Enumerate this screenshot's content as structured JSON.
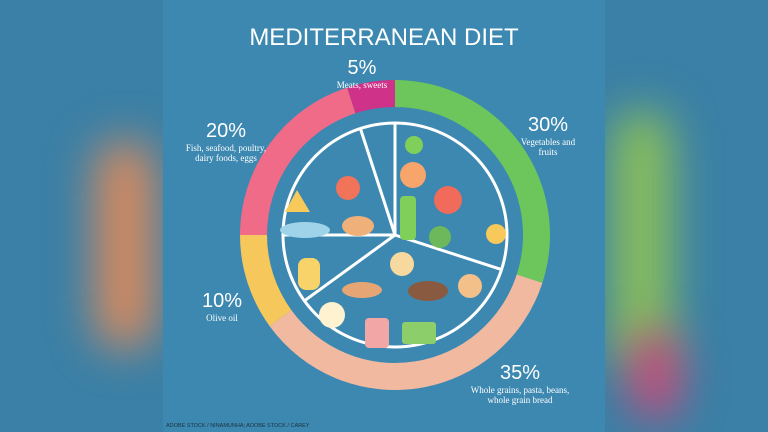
{
  "chart_data": {
    "type": "pie",
    "title": "MEDITERRANEAN DIET",
    "categories": [
      "Vegetables and fruits",
      "Whole grains, pasta, beans, whole grain bread",
      "Olive oil",
      "Fish, seafood, poultry, dairy foods, eggs",
      "Meats, sweets"
    ],
    "values": [
      30,
      35,
      10,
      20,
      5
    ],
    "value_labels": [
      "30%",
      "35%",
      "10%",
      "20%",
      "5%"
    ],
    "colors": [
      "#6cc65b",
      "#f1b9a0",
      "#f6c85c",
      "#ef6b87",
      "#cf3289"
    ]
  },
  "credit": "ADOBE STOCK / NINAMUNHA; ADOBE STOCK / CAREY"
}
